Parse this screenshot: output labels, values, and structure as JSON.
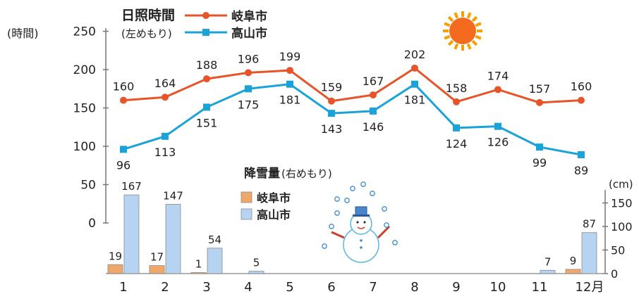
{
  "chart_data": [
    {
      "type": "line",
      "title": "日照時間",
      "axis_side": "左めもり",
      "ylabel": "(時間)",
      "categories": [
        "1",
        "2",
        "3",
        "4",
        "5",
        "6",
        "7",
        "8",
        "9",
        "10",
        "11",
        "12月"
      ],
      "ylim": [
        0,
        250
      ],
      "yticks": [
        0,
        50,
        100,
        150,
        200,
        250
      ],
      "series": [
        {
          "name": "岐阜市",
          "color": "#e8542a",
          "values": [
            160,
            164,
            188,
            196,
            199,
            159,
            167,
            202,
            158,
            174,
            157,
            160
          ]
        },
        {
          "name": "高山市",
          "color": "#1aa3d8",
          "values": [
            96,
            113,
            151,
            175,
            181,
            143,
            146,
            181,
            124,
            126,
            99,
            89
          ]
        }
      ]
    },
    {
      "type": "bar",
      "title": "降雪量",
      "axis_side": "右めもり",
      "ylabel": "(cm)",
      "categories": [
        "1",
        "2",
        "3",
        "4",
        "5",
        "6",
        "7",
        "8",
        "9",
        "10",
        "11",
        "12月"
      ],
      "ylim": [
        0,
        175
      ],
      "yticks": [
        0,
        50,
        100,
        150
      ],
      "series": [
        {
          "name": "岐阜市",
          "color": "#f0a86a",
          "values": [
            19,
            17,
            1,
            0,
            0,
            0,
            0,
            0,
            0,
            0,
            0,
            9
          ]
        },
        {
          "name": "高山市",
          "color": "#b6d3f2",
          "values": [
            167,
            147,
            54,
            5,
            0,
            0,
            0,
            0,
            0,
            0,
            7,
            87
          ]
        }
      ]
    }
  ],
  "icons": [
    "sun-icon",
    "snowman-icon",
    "snowflake-icon"
  ]
}
